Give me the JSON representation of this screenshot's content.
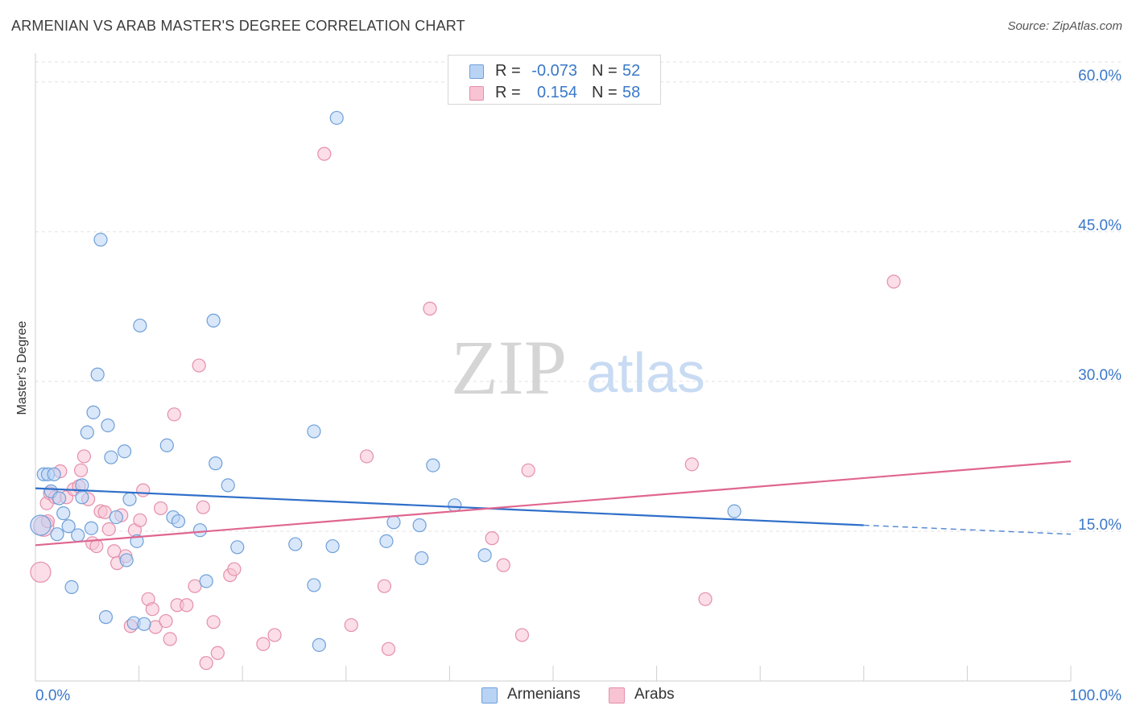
{
  "header": {
    "title": "ARMENIAN VS ARAB MASTER'S DEGREE CORRELATION CHART",
    "source": "Source: ZipAtlas.com"
  },
  "watermark": {
    "zip": "ZIP",
    "atlas": "atlas"
  },
  "legend_top": {
    "rows": [
      {
        "r_label": "R =",
        "r_value": "-0.073",
        "n_label": "N =",
        "n_value": "52"
      },
      {
        "r_label": "R =",
        "r_value": "0.154",
        "n_label": "N =",
        "n_value": "58"
      }
    ]
  },
  "legend_bottom": {
    "items": [
      {
        "label": "Armenians"
      },
      {
        "label": "Arabs"
      }
    ]
  },
  "colors": {
    "armenians_fill": "#b9d3f5",
    "armenians_stroke": "#6e9fd8",
    "armenians_line": "#2f6fc9",
    "arabs_fill": "#f8c3d3",
    "arabs_stroke": "#e48fab",
    "arabs_line": "#e0668f",
    "tick_text": "#3a78c9",
    "grid": "#e2e2e2"
  },
  "chart_data": {
    "type": "scatter",
    "title": "ARMENIAN VS ARAB MASTER'S DEGREE CORRELATION CHART",
    "xlabel": "",
    "ylabel": "Master's Degree",
    "xlim": [
      0,
      100
    ],
    "ylim": [
      0,
      62
    ],
    "x_tick_labels": [
      "0.0%",
      "100.0%"
    ],
    "y_ticks": [
      15,
      30,
      45,
      60
    ],
    "y_tick_labels": [
      "15.0%",
      "30.0%",
      "45.0%",
      "60.0%"
    ],
    "grid": "horizontal dashed",
    "legend": "top-center and bottom-center",
    "series": [
      {
        "name": "Armenians",
        "r": -0.073,
        "n": 52,
        "trend": {
          "x": [
            0,
            80
          ],
          "y": [
            19.3,
            15.6
          ],
          "dashed_to": [
            100,
            14.7
          ]
        },
        "points": [
          [
            0.5,
            15.6
          ],
          [
            0.8,
            20.7
          ],
          [
            1.2,
            20.7
          ],
          [
            1.5,
            19.0
          ],
          [
            1.8,
            20.7
          ],
          [
            2.1,
            14.7
          ],
          [
            2.3,
            18.3
          ],
          [
            2.7,
            16.8
          ],
          [
            3.2,
            15.5
          ],
          [
            3.5,
            9.4
          ],
          [
            4.1,
            14.6
          ],
          [
            4.5,
            19.6
          ],
          [
            4.5,
            18.4
          ],
          [
            5.0,
            24.9
          ],
          [
            5.4,
            15.3
          ],
          [
            5.6,
            26.9
          ],
          [
            6.0,
            30.7
          ],
          [
            6.3,
            44.2
          ],
          [
            6.8,
            6.4
          ],
          [
            7.0,
            25.6
          ],
          [
            7.3,
            22.4
          ],
          [
            7.8,
            16.4
          ],
          [
            8.6,
            23.0
          ],
          [
            8.8,
            12.1
          ],
          [
            9.1,
            18.2
          ],
          [
            9.5,
            5.8
          ],
          [
            9.8,
            14.0
          ],
          [
            10.1,
            35.6
          ],
          [
            10.5,
            5.7
          ],
          [
            12.7,
            23.6
          ],
          [
            13.3,
            16.4
          ],
          [
            13.8,
            16.0
          ],
          [
            15.9,
            15.1
          ],
          [
            16.5,
            10.0
          ],
          [
            17.2,
            36.1
          ],
          [
            17.4,
            21.8
          ],
          [
            18.6,
            19.6
          ],
          [
            19.5,
            13.4
          ],
          [
            25.1,
            13.7
          ],
          [
            26.9,
            25.0
          ],
          [
            26.9,
            9.6
          ],
          [
            27.4,
            3.6
          ],
          [
            28.7,
            13.5
          ],
          [
            29.1,
            56.4
          ],
          [
            33.9,
            14.0
          ],
          [
            34.6,
            15.9
          ],
          [
            37.1,
            15.6
          ],
          [
            37.3,
            12.3
          ],
          [
            38.4,
            21.6
          ],
          [
            40.5,
            17.6
          ],
          [
            43.4,
            12.6
          ],
          [
            67.5,
            17.0
          ]
        ]
      },
      {
        "name": "Arabs",
        "r": 0.154,
        "n": 58,
        "trend": {
          "x": [
            0,
            100
          ],
          "y": [
            13.6,
            22.0
          ]
        },
        "points": [
          [
            0.5,
            10.9
          ],
          [
            0.8,
            15.5
          ],
          [
            1.1,
            17.8
          ],
          [
            1.4,
            18.8
          ],
          [
            1.9,
            18.4
          ],
          [
            2.4,
            21.0
          ],
          [
            3.0,
            18.4
          ],
          [
            3.7,
            19.2
          ],
          [
            4.2,
            19.5
          ],
          [
            4.4,
            21.1
          ],
          [
            4.7,
            22.5
          ],
          [
            5.1,
            18.2
          ],
          [
            5.5,
            13.8
          ],
          [
            5.9,
            13.5
          ],
          [
            6.3,
            17.0
          ],
          [
            6.7,
            16.9
          ],
          [
            7.1,
            15.2
          ],
          [
            7.6,
            13.0
          ],
          [
            7.9,
            11.8
          ],
          [
            8.3,
            16.6
          ],
          [
            8.7,
            12.5
          ],
          [
            9.2,
            5.5
          ],
          [
            9.6,
            15.1
          ],
          [
            10.1,
            16.1
          ],
          [
            10.4,
            19.1
          ],
          [
            10.9,
            8.2
          ],
          [
            11.3,
            7.2
          ],
          [
            11.6,
            5.4
          ],
          [
            12.1,
            17.3
          ],
          [
            12.6,
            6.0
          ],
          [
            13.0,
            4.2
          ],
          [
            13.4,
            26.7
          ],
          [
            13.7,
            7.6
          ],
          [
            14.6,
            7.6
          ],
          [
            15.4,
            9.5
          ],
          [
            15.8,
            31.6
          ],
          [
            16.2,
            17.4
          ],
          [
            16.5,
            1.8
          ],
          [
            17.2,
            5.9
          ],
          [
            17.6,
            2.8
          ],
          [
            18.8,
            10.6
          ],
          [
            19.2,
            11.2
          ],
          [
            22.0,
            3.7
          ],
          [
            23.1,
            4.6
          ],
          [
            27.9,
            52.8
          ],
          [
            30.5,
            5.6
          ],
          [
            32.0,
            22.5
          ],
          [
            33.7,
            9.5
          ],
          [
            34.1,
            3.2
          ],
          [
            38.1,
            37.3
          ],
          [
            44.1,
            14.3
          ],
          [
            45.2,
            11.6
          ],
          [
            47.0,
            4.6
          ],
          [
            47.6,
            21.1
          ],
          [
            63.4,
            21.7
          ],
          [
            64.7,
            8.2
          ],
          [
            82.9,
            40.0
          ],
          [
            1.2,
            16.0
          ]
        ]
      }
    ]
  }
}
